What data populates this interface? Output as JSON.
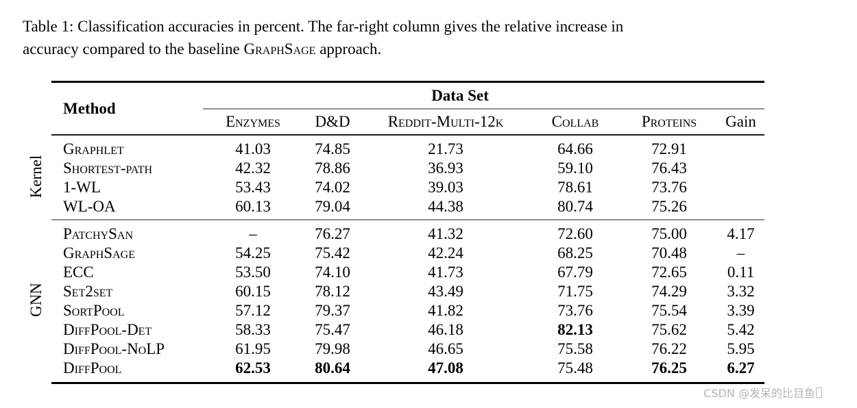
{
  "caption": {
    "line1": "Table 1: Classification accuracies in percent. The far-right column gives the relative increase in",
    "line2_before": "accuracy compared to the baseline ",
    "line2_smallcaps": "GraphSage",
    "line2_after": " approach."
  },
  "table": {
    "method_header": "Method",
    "dataset_header": "Data Set",
    "columns": [
      "Enzymes",
      "D&D",
      "Reddit-Multi-12k",
      "Collab",
      "Proteins",
      "Gain"
    ],
    "sections": [
      {
        "label": "Kernel",
        "rows": [
          {
            "method": "Graphlet",
            "values": [
              "41.03",
              "74.85",
              "21.73",
              "64.66",
              "72.91",
              ""
            ]
          },
          {
            "method": "Shortest-path",
            "values": [
              "42.32",
              "78.86",
              "36.93",
              "59.10",
              "76.43",
              ""
            ]
          },
          {
            "method": "1-WL",
            "values": [
              "53.43",
              "74.02",
              "39.03",
              "78.61",
              "73.76",
              ""
            ]
          },
          {
            "method": "WL-OA",
            "values": [
              "60.13",
              "79.04",
              "44.38",
              "80.74",
              "75.26",
              ""
            ]
          }
        ]
      },
      {
        "label": "GNN",
        "rows": [
          {
            "method": "PatchySan",
            "values": [
              "–",
              "76.27",
              "41.32",
              "72.60",
              "75.00",
              "4.17"
            ]
          },
          {
            "method": "GraphSage",
            "values": [
              "54.25",
              "75.42",
              "42.24",
              "68.25",
              "70.48",
              "–"
            ]
          },
          {
            "method": "ECC",
            "values": [
              "53.50",
              "74.10",
              "41.73",
              "67.79",
              "72.65",
              "0.11"
            ]
          },
          {
            "method": "Set2set",
            "values": [
              "60.15",
              "78.12",
              "43.49",
              "71.75",
              "74.29",
              "3.32"
            ]
          },
          {
            "method": "SortPool",
            "values": [
              "57.12",
              "79.37",
              "41.82",
              "73.76",
              "75.54",
              "3.39"
            ]
          },
          {
            "method": "DiffPool-Det",
            "values": [
              "58.33",
              "75.47",
              "46.18",
              "82.13",
              "75.62",
              "5.42"
            ],
            "bold_columns": [
              3
            ]
          },
          {
            "method": "DiffPool-NoLP",
            "values": [
              "61.95",
              "79.98",
              "46.65",
              "75.58",
              "76.22",
              "5.95"
            ]
          },
          {
            "method": "DiffPool",
            "values": [
              "62.53",
              "80.64",
              "47.08",
              "75.48",
              "76.25",
              "6.27"
            ],
            "bold_columns": [
              0,
              1,
              2,
              4,
              5
            ]
          }
        ]
      }
    ]
  },
  "watermark": {
    "text": "CSDN @发呆的比目鱼"
  },
  "colors": {
    "rule_black": "#000000",
    "rule_gray": "#8f8f8f",
    "watermark_gray": "#b5b5b5"
  }
}
